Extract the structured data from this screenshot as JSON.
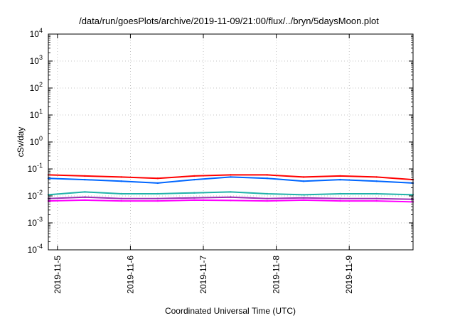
{
  "chart_data": {
    "type": "line",
    "title": "/data/run/goesPlots/archive/2019-11-09/21:00/flux/../bryn/5daysMoon.plot",
    "xlabel": "Coordinated Universal Time (UTC)",
    "ylabel": "cSv/day",
    "yscale": "log",
    "ylim": [
      0.0001,
      10000
    ],
    "xlim": [
      "2019-11-04T21:00",
      "2019-11-09T21:00"
    ],
    "grid": true,
    "y_ticks": [
      {
        "base": "10",
        "exp": "-4"
      },
      {
        "base": "10",
        "exp": "-3"
      },
      {
        "base": "10",
        "exp": "-2"
      },
      {
        "base": "10",
        "exp": "-1"
      },
      {
        "base": "10",
        "exp": "0"
      },
      {
        "base": "10",
        "exp": "1"
      },
      {
        "base": "10",
        "exp": "2"
      },
      {
        "base": "10",
        "exp": "3"
      },
      {
        "base": "10",
        "exp": "4"
      }
    ],
    "x_ticks": [
      "2019-11-5",
      "2019-11-6",
      "2019-11-7",
      "2019-11-8",
      "2019-11-9"
    ],
    "x_tick_values": [
      "2019-11-05T00:00",
      "2019-11-06T00:00",
      "2019-11-07T00:00",
      "2019-11-08T00:00",
      "2019-11-09T00:00"
    ],
    "sampling": "12 hours",
    "x": [
      "2019-11-04T21:00",
      "2019-11-05T09:00",
      "2019-11-05T21:00",
      "2019-11-06T09:00",
      "2019-11-06T21:00",
      "2019-11-07T09:00",
      "2019-11-07T21:00",
      "2019-11-08T09:00",
      "2019-11-08T21:00",
      "2019-11-09T09:00",
      "2019-11-09T21:00"
    ],
    "series": [
      {
        "color": "#ff0000",
        "values": [
          0.06,
          0.055,
          0.05,
          0.045,
          0.055,
          0.06,
          0.06,
          0.05,
          0.055,
          0.05,
          0.04
        ]
      },
      {
        "color": "#0066ff",
        "values": [
          0.045,
          0.04,
          0.035,
          0.03,
          0.04,
          0.05,
          0.045,
          0.035,
          0.04,
          0.035,
          0.03
        ]
      },
      {
        "color": "#20b2aa",
        "values": [
          0.011,
          0.014,
          0.012,
          0.012,
          0.013,
          0.014,
          0.012,
          0.011,
          0.012,
          0.012,
          0.011
        ]
      },
      {
        "color": "#9b30b5",
        "values": [
          0.008,
          0.009,
          0.008,
          0.008,
          0.0085,
          0.009,
          0.008,
          0.0085,
          0.008,
          0.008,
          0.0075
        ]
      },
      {
        "color": "#ff00ff",
        "values": [
          0.0065,
          0.007,
          0.0065,
          0.0065,
          0.007,
          0.0068,
          0.0065,
          0.007,
          0.0065,
          0.0065,
          0.006
        ]
      }
    ]
  }
}
